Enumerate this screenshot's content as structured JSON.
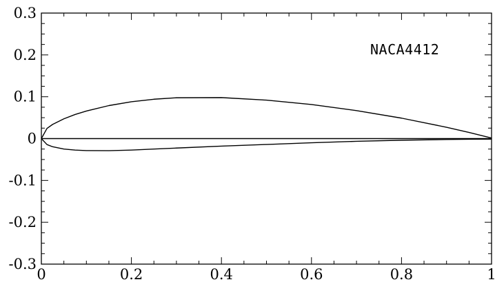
{
  "chart_data": {
    "type": "line",
    "title": "",
    "xlabel": "",
    "ylabel": "",
    "xlim": [
      0,
      1
    ],
    "ylim": [
      -0.3,
      0.3
    ],
    "grid": false,
    "x_ticks": [
      0,
      0.2,
      0.4,
      0.6,
      0.8,
      1
    ],
    "x_tick_labels": [
      "0",
      "0.2",
      "0.4",
      "0.6",
      "0.8",
      "1"
    ],
    "y_ticks": [
      0.3,
      0.2,
      0.1,
      0,
      -0.1,
      -0.2,
      -0.3
    ],
    "y_tick_labels": [
      "0.3",
      "0.2",
      "0.1",
      "0",
      "-0.1",
      "-0.2",
      "-0.3"
    ],
    "annotation": "NACA4412",
    "series": [
      {
        "x": [
          1.0,
          0.95,
          0.9,
          0.8,
          0.7,
          0.6,
          0.5,
          0.4,
          0.3,
          0.25,
          0.2,
          0.15,
          0.1,
          0.075,
          0.05,
          0.025,
          0.0125,
          0.0
        ],
        "y": [
          0.0013,
          0.0147,
          0.0271,
          0.0489,
          0.0669,
          0.0814,
          0.0919,
          0.098,
          0.0976,
          0.0941,
          0.088,
          0.0789,
          0.0659,
          0.0576,
          0.0473,
          0.0339,
          0.0244,
          0.0
        ]
      },
      {
        "x": [
          0.0,
          0.0125,
          0.025,
          0.05,
          0.075,
          0.1,
          0.15,
          0.2,
          0.25,
          0.3,
          0.4,
          0.5,
          0.6,
          0.7,
          0.8,
          0.9,
          0.95,
          1.0
        ],
        "y": [
          0.0,
          -0.0143,
          -0.0195,
          -0.0249,
          -0.0274,
          -0.0286,
          -0.0288,
          -0.0274,
          -0.025,
          -0.0226,
          -0.018,
          -0.014,
          -0.01,
          -0.0065,
          -0.0039,
          -0.0022,
          -0.0016,
          -0.0013
        ]
      },
      {
        "x": [
          0,
          1
        ],
        "y": [
          0,
          0
        ]
      }
    ]
  }
}
